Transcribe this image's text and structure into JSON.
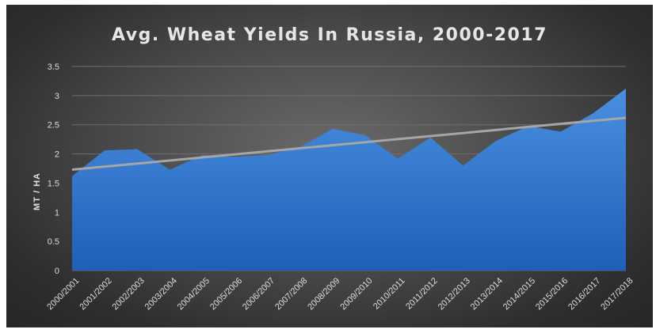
{
  "chart_data": {
    "type": "area",
    "title": "Avg. Wheat Yields In Russia, 2000-2017",
    "xlabel": "",
    "ylabel": "MT / HA",
    "ylim": [
      0,
      3.5
    ],
    "yticks": [
      "0",
      "0.5",
      "1",
      "1.5",
      "2",
      "2.5",
      "3",
      "3.5"
    ],
    "grid": true,
    "legend": "none",
    "categories": [
      "2000/2001",
      "2001/2002",
      "2002/2003",
      "2003/2004",
      "2004/2005",
      "2005/2006",
      "2006/2007",
      "2007/2008",
      "2008/2009",
      "2009/2010",
      "2010/2011",
      "2011/2012",
      "2012/2013",
      "2013/2014",
      "2014/2015",
      "2015/2016",
      "2016/2017",
      "2017/2018"
    ],
    "values": [
      1.62,
      2.06,
      2.08,
      1.73,
      1.98,
      1.95,
      1.98,
      2.12,
      2.43,
      2.32,
      1.92,
      2.28,
      1.8,
      2.22,
      2.48,
      2.38,
      2.7,
      3.12
    ],
    "trendline": {
      "type": "linear",
      "start": 1.73,
      "end": 2.62
    },
    "colors": {
      "area_top": "#4a8fe0",
      "area_bottom": "#1e5fb8",
      "trendline": "#a6a6a6",
      "gridline": "#6e6e6e",
      "text": "#dcdcdc"
    }
  }
}
